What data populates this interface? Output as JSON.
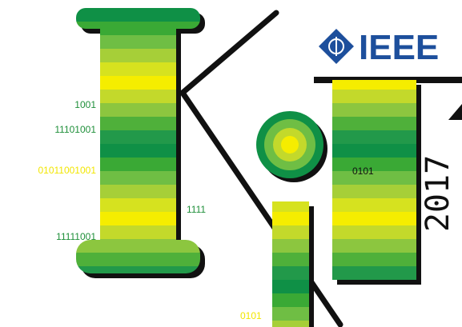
{
  "logo": {
    "brand": "IEEE",
    "year": "2017"
  },
  "binary_labels": [
    "1001",
    "11101001",
    "01011001001",
    "1111",
    "11111001",
    "0101",
    "0101"
  ]
}
